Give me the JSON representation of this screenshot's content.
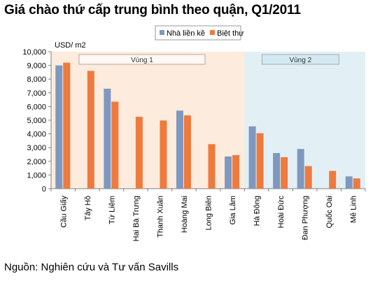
{
  "title": "Giá chào thứ cấp trung bình theo quận, Q1/2011",
  "source": "Nguồn: Nghiên cứu và Tư vấn Savills",
  "colors": {
    "series1": "#7F98BF",
    "series2": "#EE7A3E",
    "zone1_bg": "#FDEBDD",
    "zone2_bg": "#E2F0F5",
    "zone2_label_bg": "#D3E9F1"
  },
  "chart_data": {
    "type": "bar",
    "title": "Giá chào thứ cấp trung bình theo quận, Q1/2011",
    "ylabel": "USD/ m2",
    "ylim": [
      0,
      10000
    ],
    "yticks": [
      "0",
      "1,000",
      "2,000",
      "3,000",
      "4,000",
      "5,000",
      "6,000",
      "7,000",
      "8,000",
      "9,000",
      "10,000"
    ],
    "legend_position": "top-right",
    "grid": false,
    "categories": [
      "Cầu Giấy",
      "Tây Hồ",
      "Từ Liêm",
      "Hai Bà Trưng",
      "Thanh Xuân",
      "Hoàng Mai",
      "Long Biên",
      "Gia Lâm",
      "Hà Đông",
      "Hoài Đức",
      "Đan Phượng",
      "Quốc Oai",
      "Mê Linh"
    ],
    "series": [
      {
        "name": "Nhà liền kề",
        "values": [
          9000,
          null,
          7300,
          null,
          null,
          5700,
          null,
          2350,
          4550,
          2600,
          2900,
          null,
          900
        ]
      },
      {
        "name": "Biệt thự",
        "values": [
          9200,
          8600,
          6350,
          5250,
          4980,
          5350,
          3250,
          2450,
          4050,
          2300,
          1650,
          1300,
          750
        ]
      }
    ],
    "zones": [
      {
        "label": "Vùng 1",
        "categories": [
          "Cầu Giấy",
          "Tây Hồ",
          "Từ Liêm",
          "Hai Bà Trưng",
          "Thanh Xuân",
          "Hoàng Mai",
          "Long Biên",
          "Gia Lâm"
        ]
      },
      {
        "label": "Vùng 2",
        "categories": [
          "Hà Đông",
          "Hoài Đức",
          "Đan Phượng",
          "Quốc Oai",
          "Mê Linh"
        ]
      }
    ]
  }
}
